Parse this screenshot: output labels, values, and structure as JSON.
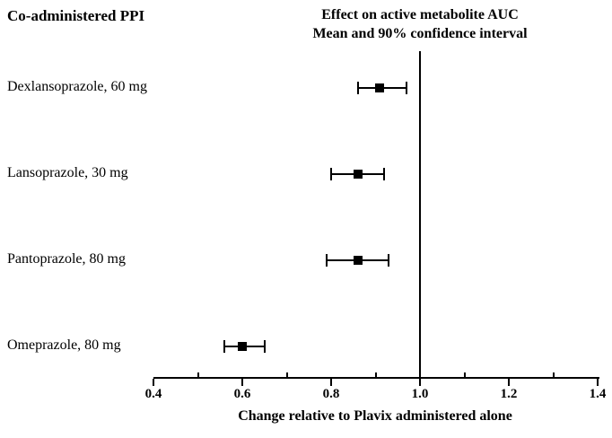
{
  "figure": {
    "background": "#ffffff",
    "foreground": "#000000"
  },
  "chart_data": {
    "type": "scatter",
    "variant": "forest-plot",
    "title": "Effect on active metabolite AUC",
    "subtitle": "Mean and 90% confidence interval",
    "left_column_header": "Co-administered PPI",
    "xlabel": "Change relative to Plavix administered alone",
    "categories": [
      "Dexlansoprazole, 60 mg",
      "Lansoprazole, 30 mg",
      "Pantoprazole, 80 mg",
      "Omeprazole, 80 mg"
    ],
    "series": [
      {
        "name": "Mean and 90% confidence interval",
        "means": [
          0.91,
          0.86,
          0.86,
          0.6
        ],
        "ci_low": [
          0.86,
          0.8,
          0.79,
          0.56
        ],
        "ci_high": [
          0.97,
          0.92,
          0.93,
          0.65
        ]
      }
    ],
    "xlim": [
      0.4,
      1.4
    ],
    "x_major_ticks": [
      0.4,
      0.6,
      0.8,
      1.0,
      1.2,
      1.4
    ],
    "x_tick_labels": [
      "0.4",
      "0.6",
      "0.8",
      "1.0",
      "1.2",
      "1.4"
    ],
    "x_minor_ticks": [
      0.5,
      0.7,
      0.9,
      1.1,
      1.3
    ],
    "reference_line_x": 1.0,
    "grid": false,
    "legend": "none",
    "marker": "filled-square"
  }
}
